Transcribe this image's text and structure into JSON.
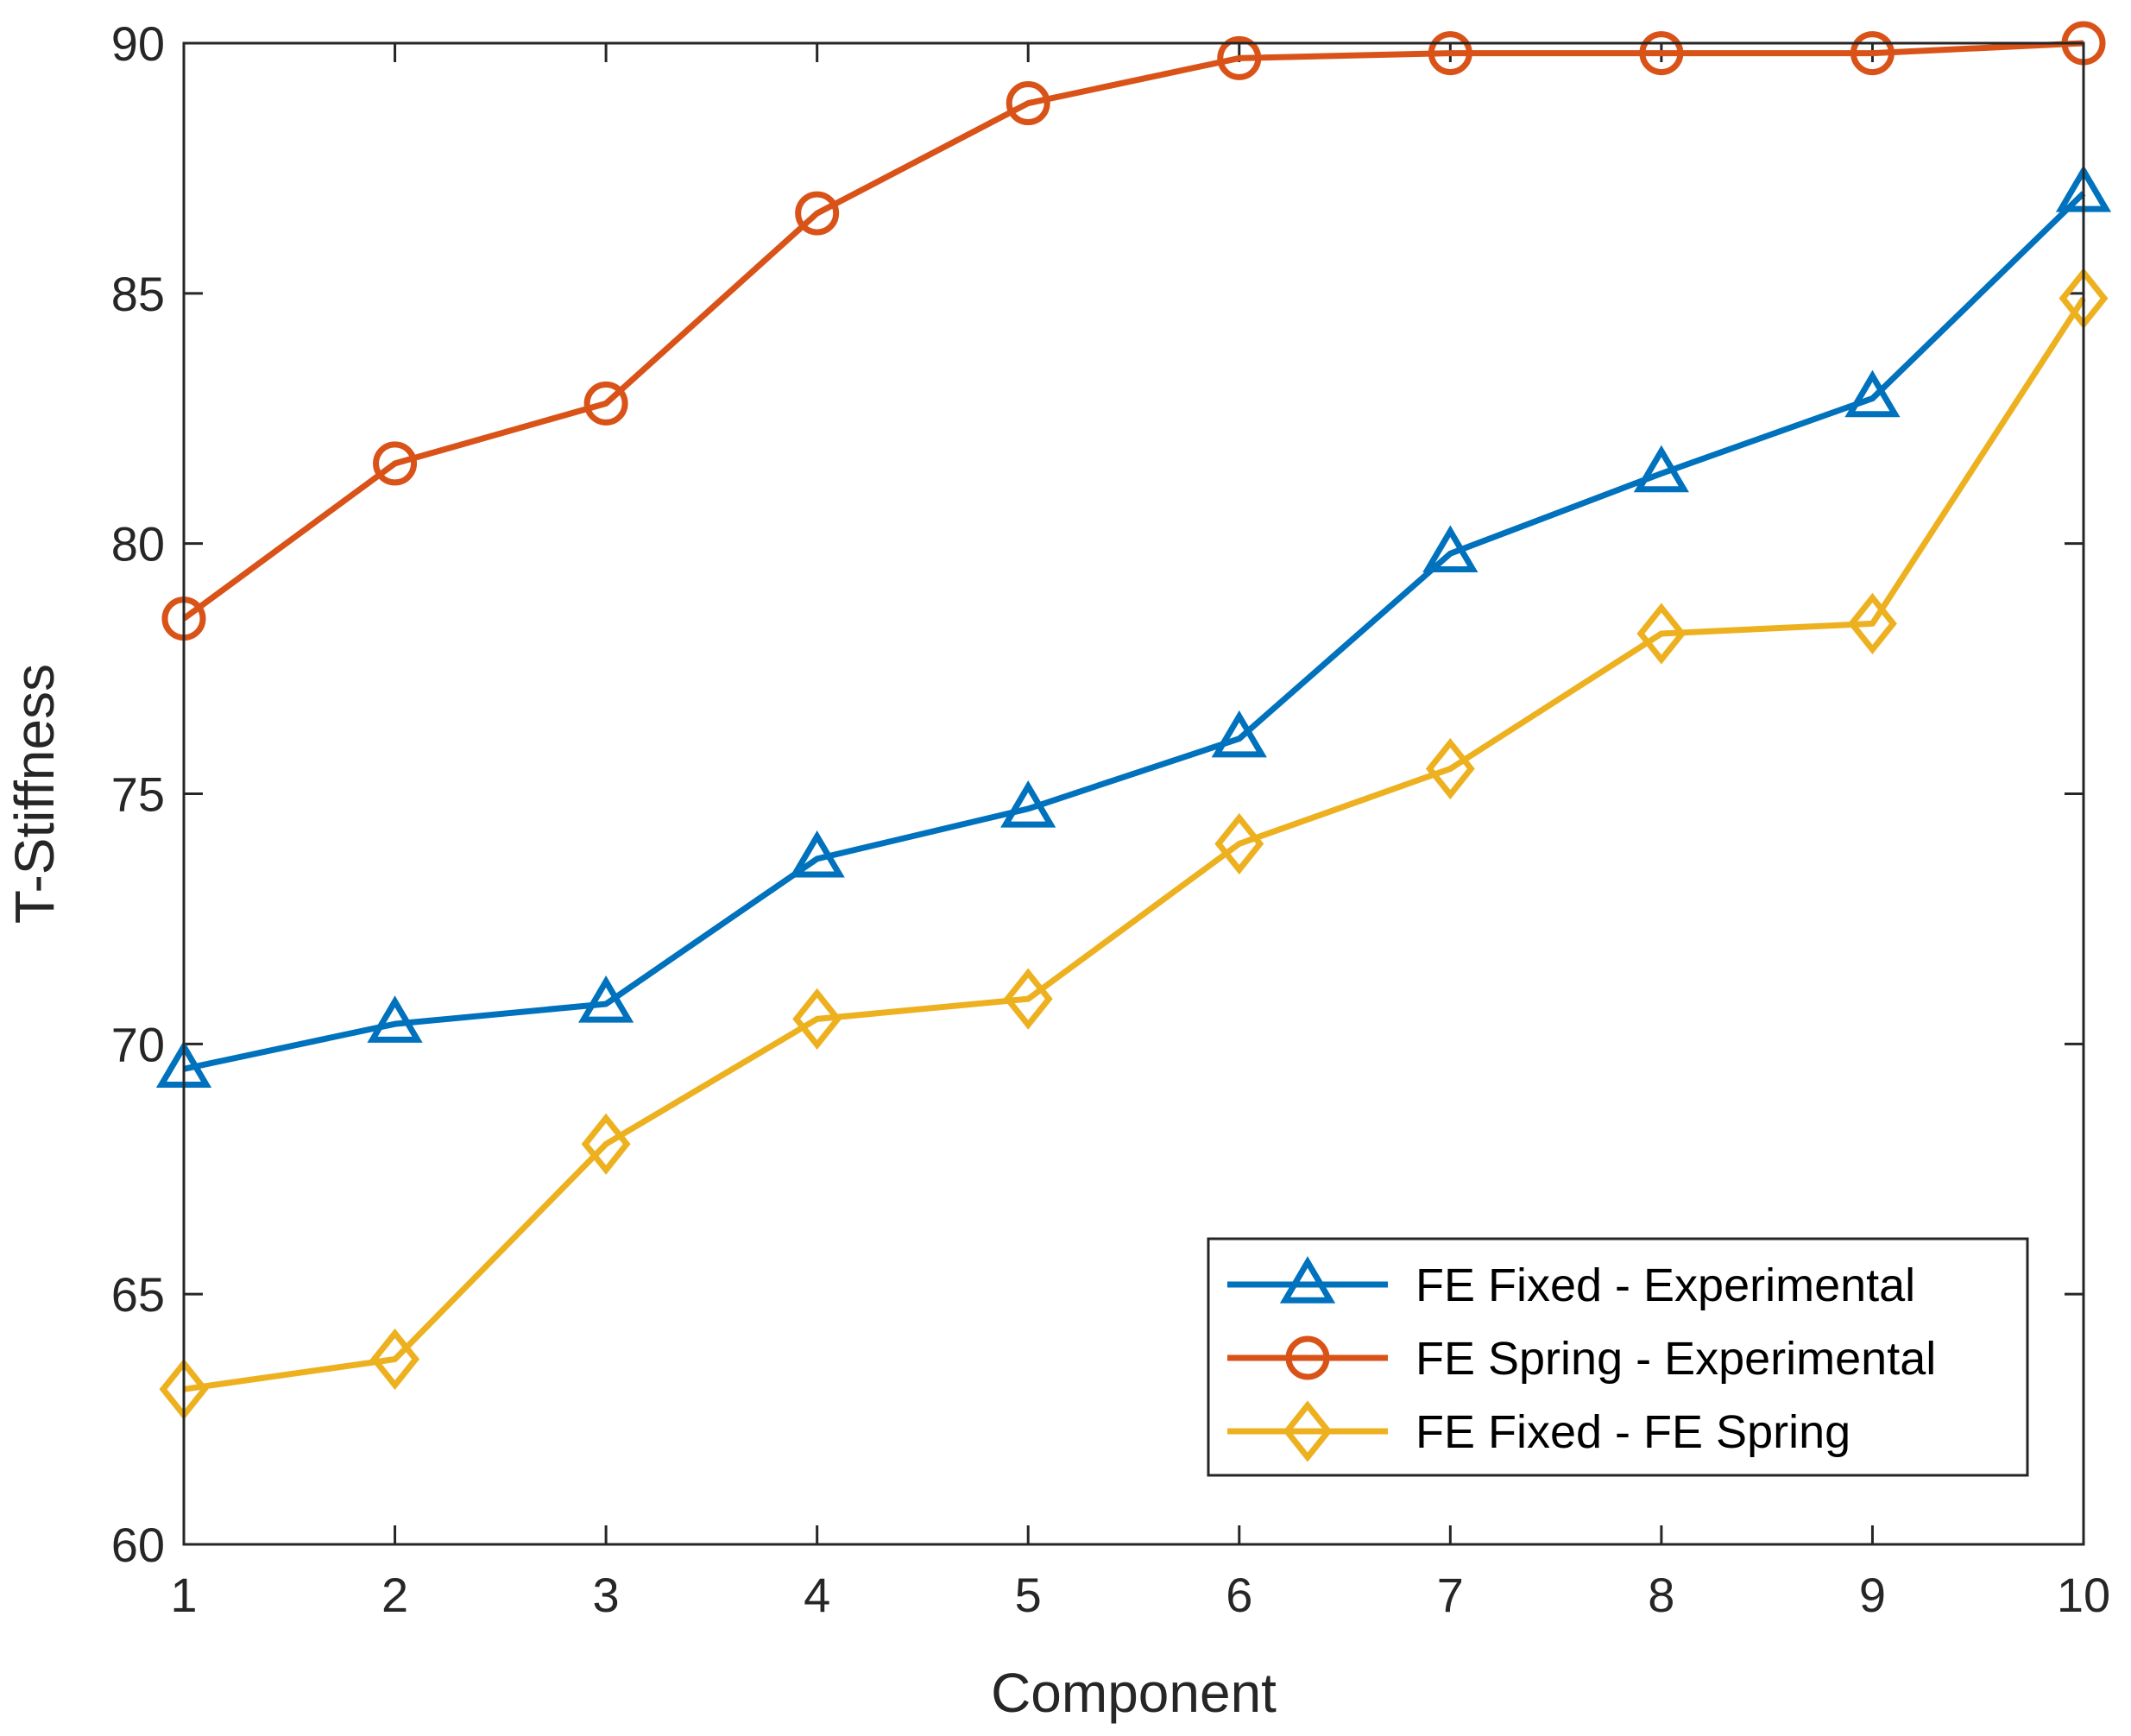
{
  "chart_data": {
    "type": "line",
    "title": "",
    "xlabel": "Component",
    "ylabel": "T-Stiffness",
    "x": [
      1,
      2,
      3,
      4,
      5,
      6,
      7,
      8,
      9,
      10
    ],
    "xlim": [
      1,
      10
    ],
    "ylim": [
      60,
      90
    ],
    "xticks": [
      1,
      2,
      3,
      4,
      5,
      6,
      7,
      8,
      9,
      10
    ],
    "yticks": [
      60,
      65,
      70,
      75,
      80,
      85,
      90
    ],
    "grid": false,
    "legend_location": "bottom-right",
    "series": [
      {
        "name": "FE Fixed - Experimental",
        "color": "#0072BD",
        "marker": "triangle",
        "values": [
          69.5,
          70.4,
          70.8,
          73.7,
          74.7,
          76.1,
          79.8,
          81.4,
          82.9,
          87.0
        ]
      },
      {
        "name": "FE Spring - Experimental",
        "color": "#D95319",
        "marker": "circle",
        "values": [
          78.5,
          81.6,
          82.8,
          86.6,
          88.8,
          89.7,
          89.8,
          89.8,
          89.8,
          90.0
        ]
      },
      {
        "name": "FE Fixed - FE Spring",
        "color": "#EDB120",
        "marker": "diamond",
        "values": [
          63.1,
          63.7,
          68.0,
          70.5,
          70.9,
          74.0,
          75.5,
          78.2,
          78.4,
          84.9
        ]
      }
    ]
  }
}
